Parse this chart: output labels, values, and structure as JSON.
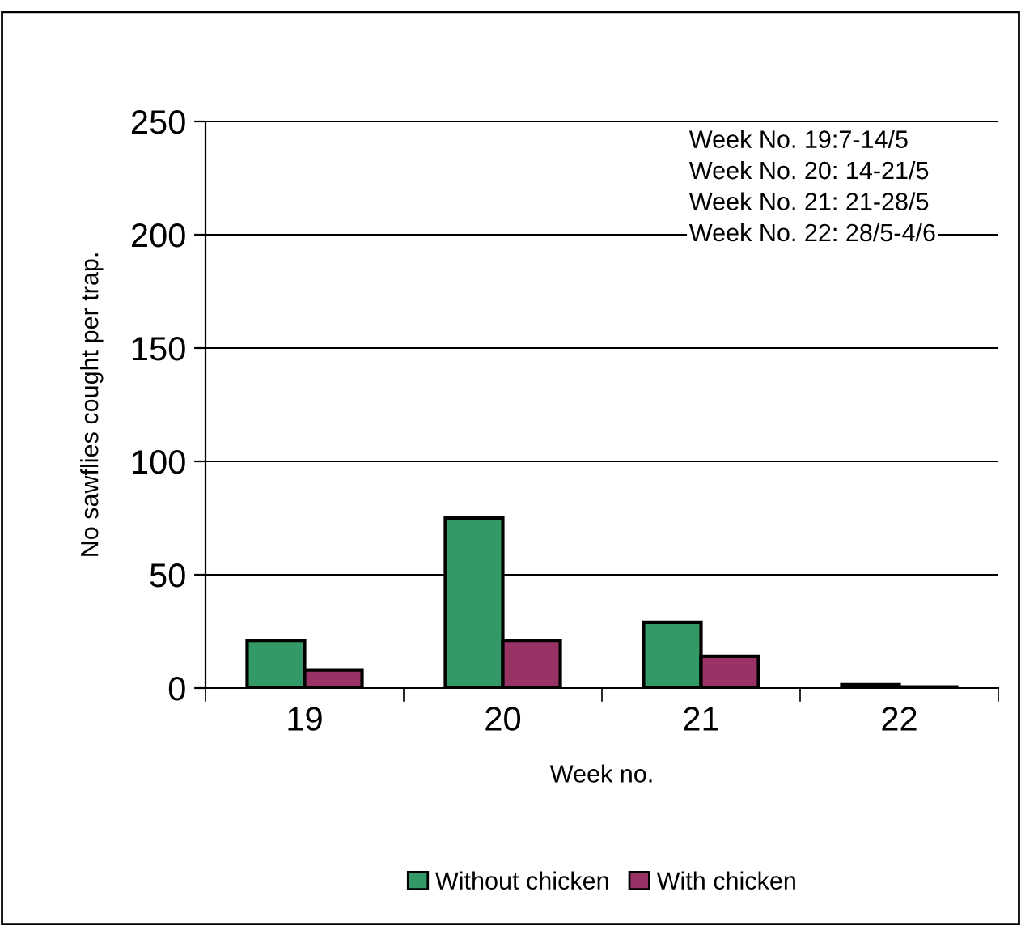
{
  "chart_data": {
    "type": "bar",
    "xlabel": "Week no.",
    "ylabel": "No sawflies cought per trap.",
    "categories": [
      "19",
      "20",
      "21",
      "22"
    ],
    "series": [
      {
        "name": "Without chicken",
        "color": "#339966",
        "values": [
          21,
          75,
          29,
          1.5
        ]
      },
      {
        "name": "With chicken",
        "color": "#993366",
        "values": [
          8,
          21,
          14,
          0.5
        ]
      }
    ],
    "ylim": [
      0,
      250
    ],
    "yticks": [
      0,
      50,
      100,
      150,
      200,
      250
    ],
    "grid": "y",
    "legend": "bottom",
    "annotations": [
      "Week No. 19:7-14/5\nWeek No. 20: 14-21/5\nWeek No. 21: 21-28/5\nWeek No. 22: 28/5-4/6"
    ]
  }
}
